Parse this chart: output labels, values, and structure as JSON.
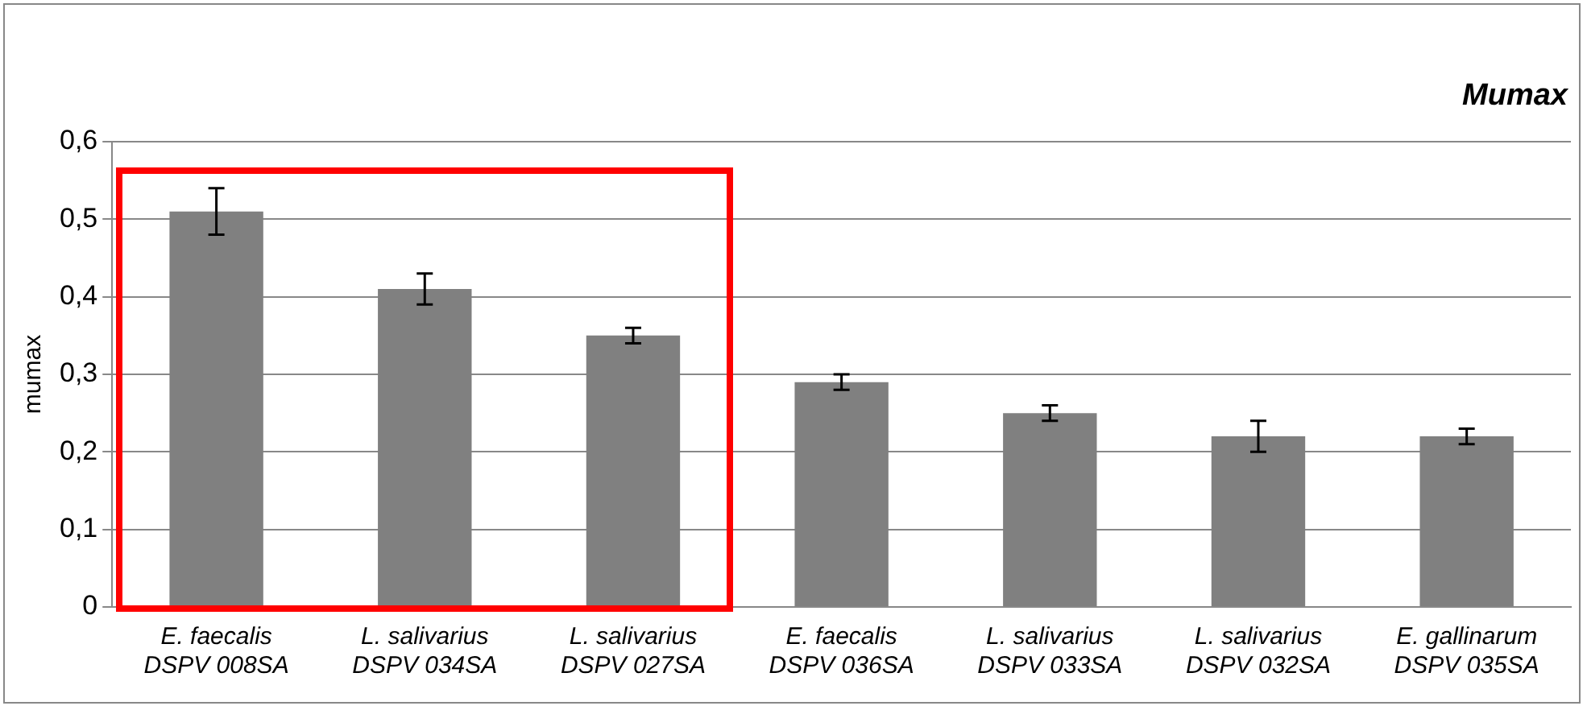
{
  "chart_data": {
    "type": "bar",
    "title": "Mumax",
    "ylabel": "mumax",
    "categories": [
      "E. faecalis\nDSPV 008SA",
      "L. salivarius\nDSPV 034SA",
      "L. salivarius\nDSPV 027SA",
      "E. faecalis\nDSPV 036SA",
      "L. salivarius\nDSPV 033SA",
      "L. salivarius\nDSPV 032SA",
      "E. gallinarum\nDSPV 035SA"
    ],
    "values": [
      0.51,
      0.41,
      0.35,
      0.29,
      0.25,
      0.22,
      0.22
    ],
    "errors": [
      0.03,
      0.02,
      0.01,
      0.01,
      0.01,
      0.02,
      0.01
    ],
    "color": "#808080",
    "ylim": [
      0,
      0.6
    ],
    "yticks": [
      0,
      {
        "value": 0.1,
        "label": "0,1"
      },
      {
        "value": 0.2,
        "label": "0,2"
      },
      {
        "value": 0.3,
        "label": "0,3"
      },
      {
        "value": 0.4,
        "label": "0,4"
      },
      {
        "value": 0.5,
        "label": "0,5"
      },
      {
        "value": 0.6,
        "label": "0,6"
      }
    ],
    "grid": "y",
    "legend": false
  }
}
